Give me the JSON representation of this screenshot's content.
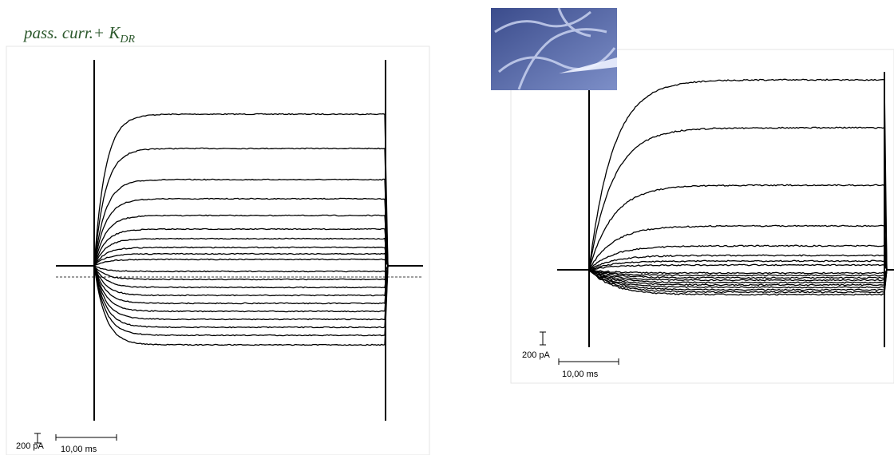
{
  "left_panel": {
    "title": {
      "text": "pass. curr.+ K",
      "subscript": "DR"
    },
    "current_scale": "200 pA",
    "time_scale": "10,00 ms"
  },
  "right_panel": {
    "current_scale": "200 pA",
    "time_scale": "10,00 ms"
  }
}
